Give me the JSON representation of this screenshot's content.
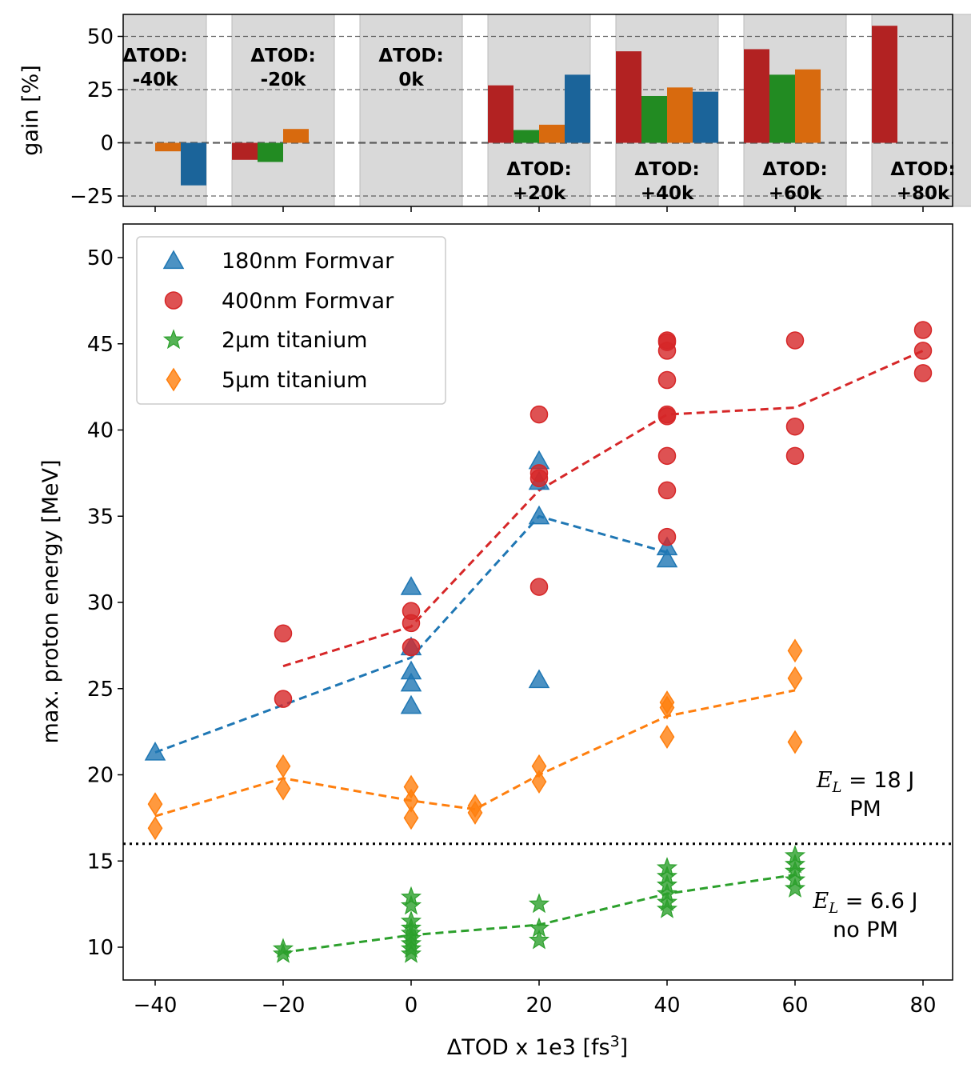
{
  "colors": {
    "formvar180": "#1f77b4",
    "formvar400": "#d62728",
    "ti2": "#2ca02c",
    "ti5": "#ff7f0e",
    "bar_formvar400": "#b22222",
    "bar_ti2": "#228b22",
    "bar_ti5": "#d86a0e",
    "bar_formvar180": "#1b649a",
    "group_bg": "#d9d9d9"
  },
  "chart_data": [
    {
      "id": "gain",
      "type": "bar",
      "ylabel": "gain [%]",
      "ylim": [
        -29,
        60
      ],
      "yticks": [
        50,
        25,
        0,
        -25
      ],
      "ytick_labels": [
        "50",
        "25",
        "0",
        "−25"
      ],
      "reference_lines": [
        50,
        25,
        0,
        -25
      ],
      "series_order": [
        "400nm Formvar",
        "2µm titanium",
        "5µm titanium",
        "180nm Formvar"
      ],
      "groups": [
        {
          "x": -40,
          "label_line1": "ΔTOD:",
          "label_line2": "-40k",
          "label_position": "top",
          "values": [
            null,
            null,
            -4,
            -20
          ]
        },
        {
          "x": -20,
          "label_line1": "ΔTOD:",
          "label_line2": "-20k",
          "label_position": "top",
          "values": [
            -8,
            -9,
            6.5,
            null
          ]
        },
        {
          "x": 0,
          "label_line1": "ΔTOD:",
          "label_line2": "0k",
          "label_position": "top",
          "values": [
            null,
            null,
            null,
            null
          ]
        },
        {
          "x": 20,
          "label_line1": "ΔTOD:",
          "label_line2": "+20k",
          "label_position": "bottom",
          "values": [
            27,
            6,
            8.5,
            32
          ]
        },
        {
          "x": 40,
          "label_line1": "ΔTOD:",
          "label_line2": "+40k",
          "label_position": "bottom",
          "values": [
            43,
            22,
            26,
            24
          ]
        },
        {
          "x": 60,
          "label_line1": "ΔTOD:",
          "label_line2": "+60k",
          "label_position": "bottom",
          "values": [
            44,
            32,
            34.5,
            null
          ]
        },
        {
          "x": 80,
          "label_line1": "ΔTOD:",
          "label_line2": "+80k",
          "label_position": "bottom",
          "values": [
            55,
            null,
            null,
            null
          ]
        }
      ]
    },
    {
      "id": "energy",
      "type": "scatter",
      "xlabel": "ΔTOD x 1e3 [fs",
      "xlabel_sup": "3",
      "xlabel_end": "]",
      "ylabel": "max. proton energy [MeV]",
      "xlim": [
        -45,
        85
      ],
      "ylim": [
        8,
        52
      ],
      "xticks": [
        -40,
        -20,
        0,
        20,
        40,
        60,
        80
      ],
      "xtick_labels": [
        "−40",
        "−20",
        "0",
        "20",
        "40",
        "60",
        "80"
      ],
      "yticks": [
        10,
        15,
        20,
        25,
        30,
        35,
        40,
        45,
        50
      ],
      "ytick_labels": [
        "10",
        "15",
        "20",
        "25",
        "30",
        "35",
        "40",
        "45",
        "50"
      ],
      "threshold": 16,
      "annotation_upper": {
        "math_main": "E",
        "math_sub": "L",
        "value": " = 18 J",
        "line2": "PM",
        "x": 71,
        "y": 19
      },
      "annotation_lower": {
        "math_main": "E",
        "math_sub": "L",
        "value": " = 6.6 J",
        "line2": "no PM",
        "x": 71,
        "y": 12
      },
      "series": [
        {
          "name": "180nm Formvar",
          "marker": "triangle",
          "color_key": "formvar180",
          "points": [
            [
              -40,
              21.3
            ],
            [
              0,
              30.9
            ],
            [
              0,
              27.4
            ],
            [
              0,
              26.0
            ],
            [
              0,
              25.3
            ],
            [
              0,
              24.0
            ],
            [
              20,
              38.2
            ],
            [
              20,
              37.0
            ],
            [
              20,
              35.0
            ],
            [
              20,
              25.5
            ],
            [
              40,
              33.2
            ],
            [
              40,
              32.5
            ]
          ],
          "trend": [
            [
              -40,
              21.3
            ],
            [
              0,
              26.8
            ],
            [
              20,
              35.0
            ],
            [
              40,
              32.9
            ]
          ]
        },
        {
          "name": "400nm Formvar",
          "marker": "circle",
          "color_key": "formvar400",
          "points": [
            [
              -20,
              28.2
            ],
            [
              -20,
              24.4
            ],
            [
              0,
              29.5
            ],
            [
              0,
              28.8
            ],
            [
              0,
              27.4
            ],
            [
              20,
              40.9
            ],
            [
              20,
              37.5
            ],
            [
              20,
              37.2
            ],
            [
              20,
              30.9
            ],
            [
              40,
              45.2
            ],
            [
              40,
              45.1
            ],
            [
              40,
              44.6
            ],
            [
              40,
              42.9
            ],
            [
              40,
              40.9
            ],
            [
              40,
              40.8
            ],
            [
              40,
              38.5
            ],
            [
              40,
              36.5
            ],
            [
              40,
              33.8
            ],
            [
              60,
              45.2
            ],
            [
              60,
              40.2
            ],
            [
              60,
              38.5
            ],
            [
              80,
              45.8
            ],
            [
              80,
              44.6
            ],
            [
              80,
              43.3
            ]
          ],
          "trend": [
            [
              -20,
              26.3
            ],
            [
              0,
              28.6
            ],
            [
              20,
              36.5
            ],
            [
              40,
              40.9
            ],
            [
              60,
              41.3
            ],
            [
              80,
              44.6
            ]
          ]
        },
        {
          "name": "2µm titanium",
          "marker": "star",
          "color_key": "ti2",
          "points": [
            [
              -20,
              9.9
            ],
            [
              -20,
              9.6
            ],
            [
              0,
              12.9
            ],
            [
              0,
              12.4
            ],
            [
              0,
              11.5
            ],
            [
              0,
              11.1
            ],
            [
              0,
              10.8
            ],
            [
              0,
              10.5
            ],
            [
              0,
              10.2
            ],
            [
              0,
              9.9
            ],
            [
              0,
              9.6
            ],
            [
              20,
              12.5
            ],
            [
              20,
              11.1
            ],
            [
              20,
              10.4
            ],
            [
              40,
              14.6
            ],
            [
              40,
              14.1
            ],
            [
              40,
              13.6
            ],
            [
              40,
              13.1
            ],
            [
              40,
              12.6
            ],
            [
              40,
              12.2
            ],
            [
              60,
              15.3
            ],
            [
              60,
              14.8
            ],
            [
              60,
              14.4
            ],
            [
              60,
              13.9
            ],
            [
              60,
              13.4
            ]
          ],
          "trend": [
            [
              -20,
              9.7
            ],
            [
              0,
              10.7
            ],
            [
              20,
              11.3
            ],
            [
              40,
              13.1
            ],
            [
              60,
              14.2
            ]
          ]
        },
        {
          "name": "5µm titanium",
          "marker": "diamond",
          "color_key": "ti5",
          "points": [
            [
              -40,
              18.3
            ],
            [
              -40,
              16.9
            ],
            [
              -20,
              20.5
            ],
            [
              -20,
              19.2
            ],
            [
              0,
              19.3
            ],
            [
              0,
              18.5
            ],
            [
              0,
              17.5
            ],
            [
              10,
              18.2
            ],
            [
              10,
              17.8
            ],
            [
              20,
              20.5
            ],
            [
              20,
              19.6
            ],
            [
              40,
              24.2
            ],
            [
              40,
              23.9
            ],
            [
              40,
              22.2
            ],
            [
              60,
              27.2
            ],
            [
              60,
              25.6
            ],
            [
              60,
              21.9
            ]
          ],
          "trend": [
            [
              -40,
              17.6
            ],
            [
              -20,
              19.8
            ],
            [
              0,
              18.5
            ],
            [
              10,
              18.0
            ],
            [
              20,
              20.0
            ],
            [
              40,
              23.4
            ],
            [
              60,
              24.9
            ]
          ]
        }
      ]
    }
  ]
}
